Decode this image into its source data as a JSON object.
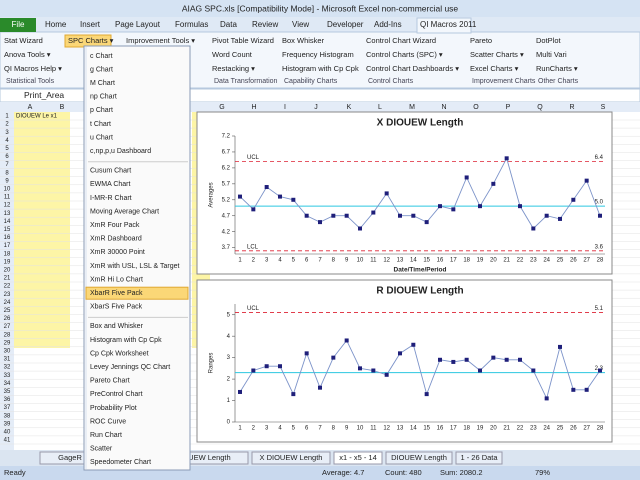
{
  "window": {
    "title": "AIAG SPC.xls [Compatibility Mode] - Microsoft Excel non-commercial use"
  },
  "tabs": [
    "File",
    "Home",
    "Insert",
    "Page Layout",
    "Formulas",
    "Data",
    "Review",
    "View",
    "Developer",
    "Add-Ins",
    "QI Macros 2011"
  ],
  "ribbon": {
    "groups": [
      {
        "label": "Statistical Tools",
        "items": [
          "Stat Wizard",
          "Anova Tools ▾",
          "QI Macros Help ▾"
        ]
      },
      {
        "items": [
          "SPC Charts ▾"
        ]
      },
      {
        "items": [
          "Improvement Tools ▾"
        ]
      },
      {
        "label": "Data Transformation",
        "items": [
          "Pivot Table Wizard",
          "Word Count",
          "Restacking ▾"
        ]
      },
      {
        "label": "Capability Charts",
        "items": [
          "Box Whisker",
          "Frequency Histogram",
          "Histogram with Cp Cpk"
        ]
      },
      {
        "label": "Control Charts",
        "items": [
          "Control Chart Wizard",
          "Control Charts (SPC) ▾",
          "Control Chart Dashboards ▾"
        ]
      },
      {
        "label": "Improvement Charts",
        "items": [
          "Pareto",
          "Scatter Charts ▾",
          "Excel Charts ▾"
        ]
      },
      {
        "label": "Other Charts",
        "items": [
          "DotPlot",
          "Multi Vari",
          "RunCharts ▾"
        ]
      }
    ]
  },
  "name_box": "Print_Area",
  "columns": [
    "A",
    "B",
    "G",
    "H",
    "I",
    "J",
    "K",
    "L",
    "M",
    "N",
    "O",
    "P",
    "Q",
    "R",
    "S"
  ],
  "row_numbers": [
    1,
    2,
    3,
    4,
    5,
    6,
    7,
    8,
    9,
    10,
    11,
    12,
    13,
    14,
    15,
    16,
    17,
    18,
    19,
    20,
    21,
    22,
    23,
    24,
    25,
    26,
    27,
    28,
    29,
    30,
    31,
    32,
    33,
    34,
    35,
    36,
    37,
    38,
    39,
    40,
    41
  ],
  "cell_a1": "DIOUEW Le x1",
  "menu": {
    "items": [
      "c Chart",
      "g Chart",
      "M Chart",
      "np Chart",
      "p Chart",
      "t Chart",
      "u Chart",
      "c,np,p,u Dashboard",
      "Cusum Chart",
      "EWMA Chart",
      "I-MR-R Chart",
      "Moving Average Chart",
      "XmR Four Pack",
      "XmR Dashboard",
      "XmR 30000 Point",
      "XmR with USL, LSL & Target",
      "XmR Hi Lo Chart",
      "XbarR Five Pack",
      "XbarS Five Pack",
      "Box and Whisker",
      "Histogram with Cp Cpk",
      "Cp Cpk Worksheet",
      "Levey Jennings QC Chart",
      "Pareto Chart",
      "PreControl Chart",
      "Probability Plot",
      "ROC Curve",
      "Run Chart",
      "Scatter",
      "Speedometer Chart"
    ]
  },
  "charts": [
    {
      "type": "line",
      "title": "X DIOUEW Length",
      "y_label": "Averages",
      "x_label": "Date/Time/Period",
      "color": "#1f1f7a",
      "x": [
        1,
        2,
        3,
        4,
        5,
        6,
        7,
        8,
        9,
        10,
        11,
        12,
        13,
        14,
        15,
        16,
        17,
        18,
        19,
        20,
        21,
        22,
        23,
        24,
        25,
        26,
        27,
        28
      ],
      "values": [
        5.3,
        4.9,
        5.6,
        5.3,
        5.2,
        4.7,
        4.5,
        4.7,
        4.7,
        4.3,
        4.8,
        5.4,
        4.7,
        4.7,
        4.5,
        5.0,
        4.9,
        5.9,
        5.0,
        5.7,
        6.5,
        5.0,
        4.3,
        4.7,
        4.6,
        5.2,
        5.8,
        4.7
      ],
      "ylim": [
        3.5,
        7.2
      ],
      "yticks": [
        3.7,
        4.2,
        4.7,
        5.2,
        5.7,
        6.2,
        6.7,
        7.2
      ],
      "control_lines": {
        "names": [
          "UCL",
          "LCL"
        ],
        "values": [
          6.4,
          3.6
        ],
        "value_labels": [
          "6.4",
          "3.6"
        ],
        "center": 5,
        "center_label": "5.0"
      }
    },
    {
      "type": "line",
      "title": "R DIOUEW Length",
      "y_label": "Ranges",
      "color": "#1f1f7a",
      "x": [
        1,
        2,
        3,
        4,
        5,
        6,
        7,
        8,
        9,
        10,
        11,
        12,
        13,
        14,
        15,
        16,
        17,
        18,
        19,
        20,
        21,
        22,
        23,
        24,
        25,
        26,
        27,
        28
      ],
      "values": [
        1.4,
        2.4,
        2.6,
        2.6,
        1.3,
        3.2,
        1.6,
        3.0,
        3.8,
        2.5,
        2.4,
        2.2,
        3.2,
        3.6,
        1.3,
        2.9,
        2.8,
        2.9,
        2.4,
        3.0,
        2.9,
        2.9,
        2.4,
        1.1,
        3.5,
        1.5,
        1.5,
        2.4
      ],
      "ylim": [
        0,
        5.5
      ],
      "yticks": [
        0,
        1,
        2,
        3,
        4,
        5
      ],
      "control_lines": {
        "names": [
          "UCL"
        ],
        "values": [
          5.1
        ],
        "value_labels": [
          "5.1"
        ],
        "center": 2.3,
        "center_label": "2.3"
      }
    }
  ],
  "sheet_tabs": [
    "GageR",
    "R DIOUEW Length",
    "X DIOUEW Length",
    "x1 - x5 - 14",
    "DIOUEW Length",
    "1 - 26 Data"
  ],
  "status": {
    "ready": "Ready",
    "average": "Average: 4.7",
    "count": "Count: 480",
    "sum": "Sum: 2080.2",
    "zoom": "79%"
  }
}
